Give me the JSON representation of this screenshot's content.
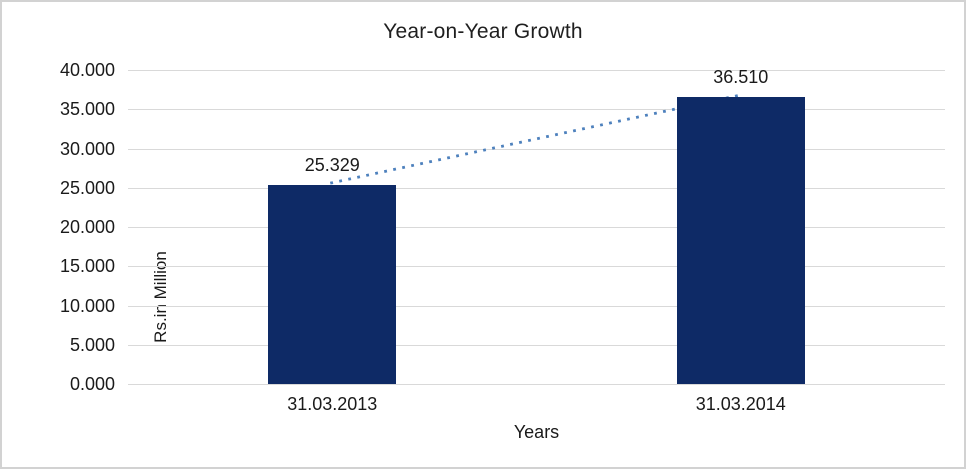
{
  "chart_data": {
    "type": "bar",
    "title": "Year-on-Year Growth",
    "xlabel": "Years",
    "ylabel": "Rs.in Million",
    "categories": [
      "31.03.2013",
      "31.03.2014"
    ],
    "values": [
      25.329,
      36.51
    ],
    "value_labels": [
      "25.329",
      "36.510"
    ],
    "ylim": [
      0,
      40
    ],
    "yticks": [
      40,
      35,
      30,
      25,
      20,
      15,
      10,
      5,
      0
    ],
    "ytick_labels": [
      "40.000",
      "35.000",
      "30.000",
      "25.000",
      "20.000",
      "15.000",
      "10.000",
      "5.000",
      "0.000"
    ],
    "grid": true,
    "legend": "none",
    "colors": {
      "bar_fill": "#0e2a66",
      "trendline": "#4e81bd",
      "gridline": "#d9d9d9",
      "text": "#1a1a1a",
      "border": "#d2d2d2"
    },
    "trendline": {
      "style": "dotted",
      "connects": "bar tops from 25.329 to 36.510"
    }
  }
}
